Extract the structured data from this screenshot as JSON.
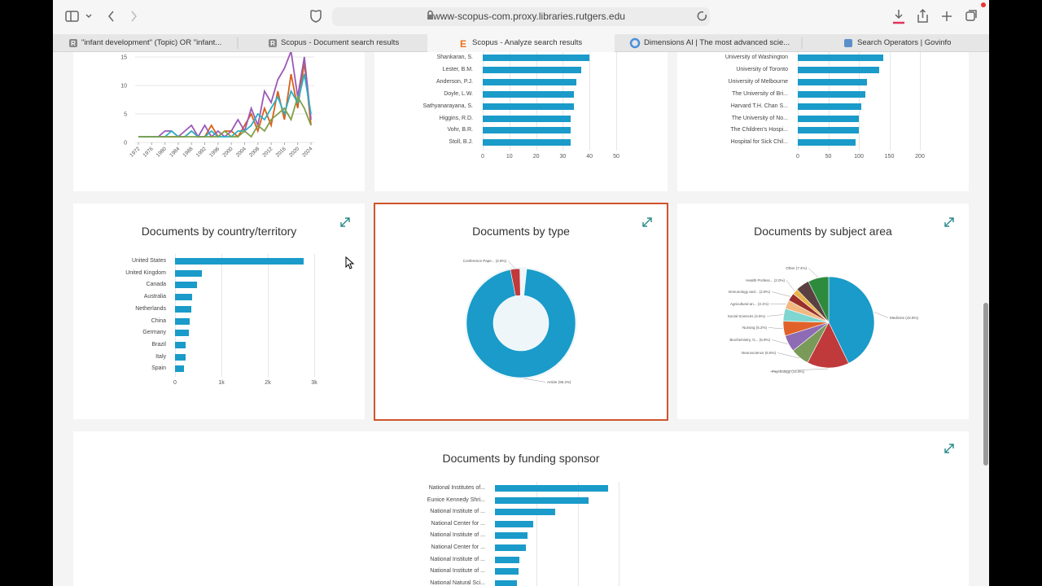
{
  "browser": {
    "url": "www-scopus-com.proxy.libraries.rutgers.edu",
    "tabs": [
      "\"infant development\" (Topic) OR \"infant...",
      "Scopus - Document search results",
      "Scopus - Analyze search results",
      "Dimensions AI | The most advanced scie...",
      "Search Operators | Govinfo"
    ]
  },
  "charts": {
    "trend": {
      "type": "line",
      "x": [
        1972,
        1974,
        1976,
        1978,
        1980,
        1982,
        1984,
        1986,
        1988,
        1990,
        1992,
        1994,
        1996,
        1998,
        2000,
        2002,
        2004,
        2006,
        2008,
        2010,
        2012,
        2014,
        2016,
        2018,
        2020,
        2022,
        2024
      ],
      "xlim": [
        1972,
        2024
      ],
      "xticks": [
        1972,
        1976,
        1980,
        1984,
        1988,
        1992,
        1996,
        2000,
        2004,
        2008,
        2012,
        2016,
        2020,
        2024
      ],
      "ylim": [
        0,
        16
      ],
      "yticks": [
        0,
        5,
        10,
        15
      ],
      "grid": true,
      "series": [
        {
          "color": "#d9601a",
          "values": [
            1,
            1,
            1,
            1,
            1,
            1,
            1,
            1,
            2,
            1,
            1,
            3,
            1,
            2,
            2,
            1,
            3,
            5,
            2,
            6,
            3,
            9,
            4,
            12,
            6,
            14,
            3
          ]
        },
        {
          "color": "#9b59b6",
          "values": [
            1,
            1,
            1,
            1,
            2,
            2,
            1,
            2,
            3,
            1,
            3,
            1,
            2,
            1,
            2,
            4,
            2,
            6,
            3,
            9,
            7,
            11,
            13,
            16,
            8,
            15,
            4
          ]
        },
        {
          "color": "#2ab0c5",
          "values": [
            1,
            1,
            1,
            1,
            1,
            2,
            1,
            1,
            2,
            1,
            1,
            2,
            1,
            1,
            1,
            2,
            2,
            3,
            5,
            4,
            6,
            8,
            5,
            9,
            7,
            12,
            5
          ]
        },
        {
          "color": "#7fa04a",
          "values": [
            1,
            1,
            1,
            1,
            1,
            1,
            1,
            1,
            1,
            1,
            1,
            1,
            1,
            2,
            1,
            1,
            2,
            1,
            3,
            2,
            4,
            5,
            6,
            4,
            8,
            6,
            3
          ]
        }
      ]
    },
    "authors": {
      "type": "bar",
      "color": "#1a9bc9",
      "categories": [
        "Shankaran, S.",
        "Lester, B.M.",
        "Anderson, P.J.",
        "Doyle, L.W.",
        "Sathyanarayana, S.",
        "Higgins, R.D.",
        "Vohr, B.R.",
        "Stoll, B.J."
      ],
      "values": [
        40,
        37,
        35,
        34,
        34,
        33,
        33,
        33
      ],
      "xlim": [
        0,
        50
      ],
      "xticks": [
        0,
        10,
        20,
        30,
        40,
        50
      ]
    },
    "affiliations": {
      "type": "bar",
      "color": "#1a9bc9",
      "categories": [
        "University of Washington",
        "University of Toronto",
        "University of Melbourne",
        "The University of Bri...",
        "Harvard T.H. Chan S...",
        "The University of No...",
        "The Children's Hospi...",
        "Hospital for Sick Chil..."
      ],
      "values": [
        140,
        133,
        113,
        110,
        104,
        100,
        100,
        95
      ],
      "xlim": [
        0,
        200
      ],
      "xticks": [
        0,
        50,
        100,
        150,
        200
      ]
    },
    "country": {
      "type": "bar",
      "title": "Documents by country/territory",
      "color": "#1a9bc9",
      "categories": [
        "United States",
        "United Kingdom",
        "Canada",
        "Australia",
        "Netherlands",
        "China",
        "Germany",
        "Brazil",
        "Italy",
        "Spain"
      ],
      "values": [
        2770,
        580,
        470,
        370,
        350,
        310,
        300,
        230,
        230,
        190
      ],
      "xlim": [
        0,
        3000
      ],
      "xticks": [
        0,
        {
          "value": 1000,
          "label": "1k"
        },
        {
          "value": 2000,
          "label": "2k"
        },
        {
          "value": 3000,
          "label": "3k"
        }
      ]
    },
    "doctype": {
      "type": "donut",
      "title": "Documents by type",
      "categories": [
        "Article",
        "Conference Pape..."
      ],
      "values": [
        95.2,
        2.8
      ],
      "value_labels": [
        "Article (95.2%)",
        "Conference Pape... (2.8%)"
      ],
      "colors": [
        "#1a9bc9",
        "#c0393b"
      ]
    },
    "subject": {
      "type": "pie",
      "title": "Documents by subject area",
      "categories": [
        "Medicine",
        "Psychology",
        "Neuroscience",
        "Biochemistry, G...",
        "Nursing",
        "Social Sciences",
        "Agricultural an...",
        "Immunology and...",
        "Health Profess...",
        "Other"
      ],
      "values": [
        42.8,
        14.9,
        6.6,
        5.9,
        5.2,
        4.5,
        3.1,
        2.8,
        2.0,
        7.4
      ],
      "value_labels": [
        "Medicine (42.8%)",
        "Psychology (14.9%)",
        "Neuroscience (6.6%)",
        "Biochemistry, G... (5.9%)",
        "Nursing (5.2%)",
        "Social Sciences (4.5%)",
        "Agricultural an... (3.1%)",
        "Immunology and... (2.8%)",
        "Health Profess... (2.0%)",
        "Other (7.4%)"
      ],
      "colors": [
        "#1a9bc9",
        "#c0393b",
        "#7a9a5a",
        "#8e6bb5",
        "#e0622a",
        "#7fd6d0",
        "#f2b880",
        "#9a2f2a",
        "#e8b44a",
        "#2e8b3e"
      ]
    },
    "funding": {
      "type": "bar",
      "title": "Documents by funding sponsor",
      "color": "#1a9bc9",
      "categories": [
        "National Institutes of...",
        "Eunice Kennedy Shri...",
        "National Institute of ...",
        "National Center for ...",
        "National Institute of ...",
        "National Center for ...",
        "National Institute of ...",
        "National Institute of ...",
        "National Natural Sci..."
      ],
      "values": [
        274,
        227,
        146,
        93,
        79,
        75,
        59,
        57,
        53
      ],
      "xlim": [
        0,
        300
      ]
    }
  }
}
